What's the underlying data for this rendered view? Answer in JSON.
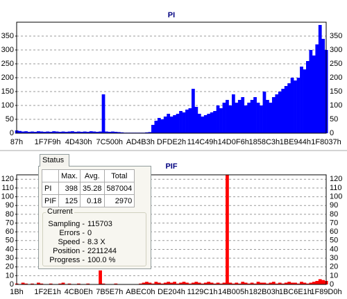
{
  "chart_data": [
    {
      "type": "bar",
      "title": "PI",
      "categories": [
        "87h",
        null,
        null,
        null,
        null,
        null,
        null,
        null,
        null,
        null,
        "1F7F9h",
        null,
        null,
        null,
        null,
        null,
        null,
        null,
        null,
        null,
        "4D430h",
        null,
        null,
        null,
        null,
        null,
        null,
        null,
        null,
        null,
        "7C500h",
        null,
        null,
        null,
        null,
        null,
        null,
        null,
        null,
        null,
        "AD4B3h",
        null,
        null,
        null,
        null,
        null,
        null,
        null,
        null,
        null,
        "DFDE2h",
        null,
        null,
        null,
        null,
        null,
        null,
        null,
        null,
        null,
        "114C49h",
        null,
        null,
        null,
        null,
        null,
        null,
        null,
        null,
        null,
        "14D0F6h",
        null,
        null,
        null,
        null,
        null,
        null,
        null,
        null,
        null,
        "1858C3h",
        null,
        null,
        null,
        null,
        null,
        null,
        null,
        null,
        null,
        "1BE944h",
        null,
        null,
        null,
        null,
        null,
        null,
        null,
        null,
        null,
        "1F8037h"
      ],
      "values": [
        10,
        8,
        6,
        7,
        5,
        6,
        5,
        7,
        6,
        5,
        6,
        5,
        7,
        6,
        5,
        6,
        5,
        6,
        7,
        5,
        6,
        5,
        6,
        5,
        7,
        6,
        5,
        6,
        140,
        6,
        5,
        6,
        5,
        4,
        3,
        2,
        2,
        2,
        2,
        2,
        2,
        2,
        3,
        4,
        30,
        45,
        55,
        50,
        60,
        70,
        60,
        65,
        70,
        80,
        75,
        85,
        90,
        160,
        95,
        70,
        60,
        65,
        70,
        75,
        80,
        100,
        90,
        110,
        120,
        100,
        140,
        110,
        120,
        130,
        100,
        110,
        120,
        130,
        110,
        100,
        150,
        120,
        110,
        130,
        140,
        150,
        160,
        170,
        180,
        200,
        190,
        200,
        240,
        230,
        260,
        300,
        280,
        320,
        390,
        340,
        300
      ],
      "color": "#0000ff",
      "ylim": [
        0,
        400
      ],
      "yticks": [
        0,
        50,
        100,
        150,
        200,
        250,
        300,
        350
      ],
      "grid": true
    },
    {
      "type": "bar",
      "title": "PIF",
      "categories": [
        "1Bh",
        null,
        null,
        null,
        null,
        null,
        null,
        null,
        null,
        null,
        "1F2E1h",
        null,
        null,
        null,
        null,
        null,
        null,
        null,
        null,
        null,
        "4CB0Eh",
        null,
        null,
        null,
        null,
        null,
        null,
        null,
        null,
        null,
        "7B5E7h",
        null,
        null,
        null,
        null,
        null,
        null,
        null,
        null,
        null,
        "ABEC0h",
        null,
        null,
        null,
        null,
        null,
        null,
        null,
        null,
        null,
        "DE204h",
        null,
        null,
        null,
        null,
        null,
        null,
        null,
        null,
        null,
        "1129C1h",
        null,
        null,
        null,
        null,
        null,
        null,
        null,
        null,
        null,
        "14B005h",
        null,
        null,
        null,
        null,
        null,
        null,
        null,
        null,
        null,
        "182B03h",
        null,
        null,
        null,
        null,
        null,
        null,
        null,
        null,
        null,
        "1BC6E1h",
        null,
        null,
        null,
        null,
        null,
        null,
        null,
        null,
        null,
        "1F89D0h"
      ],
      "values": [
        1,
        0,
        2,
        1,
        0,
        1,
        0,
        2,
        1,
        0,
        0,
        1,
        0,
        0,
        1,
        2,
        0,
        1,
        0,
        0,
        1,
        0,
        0,
        1,
        0,
        0,
        0,
        16,
        1,
        0,
        0,
        0,
        1,
        0,
        0,
        0,
        0,
        0,
        0,
        0,
        1,
        2,
        3,
        2,
        1,
        3,
        2,
        1,
        2,
        3,
        2,
        3,
        1,
        2,
        3,
        2,
        1,
        2,
        3,
        2,
        1,
        2,
        3,
        2,
        1,
        2,
        1,
        2,
        125,
        2,
        1,
        2,
        1,
        3,
        2,
        1,
        2,
        1,
        3,
        2,
        2,
        1,
        2,
        3,
        1,
        2,
        1,
        2,
        3,
        2,
        2,
        1,
        3,
        2,
        1,
        2,
        3,
        4,
        6,
        5,
        4
      ],
      "color": "#ff0000",
      "ylim": [
        0,
        125
      ],
      "yticks": [
        0,
        10,
        20,
        30,
        40,
        50,
        60,
        70,
        80,
        90,
        100,
        110,
        120
      ],
      "grid": true
    }
  ],
  "status": {
    "tab": "Status",
    "table": {
      "header": [
        "Max.",
        "Avg.",
        "Total"
      ],
      "rows": [
        [
          "PI",
          398,
          35.28,
          587004
        ],
        [
          "PIF",
          125,
          0.18,
          2970
        ]
      ]
    },
    "current": {
      "title": "Current",
      "rows": [
        {
          "label": "Sampling -",
          "value": 115703
        },
        {
          "label": "Errors -",
          "value": 0
        },
        {
          "label": "Speed -",
          "value": "8.3 X"
        },
        {
          "label": "Position -",
          "value": 2211244
        },
        {
          "label": "Progress -",
          "value": "100.0 %"
        }
      ]
    }
  }
}
